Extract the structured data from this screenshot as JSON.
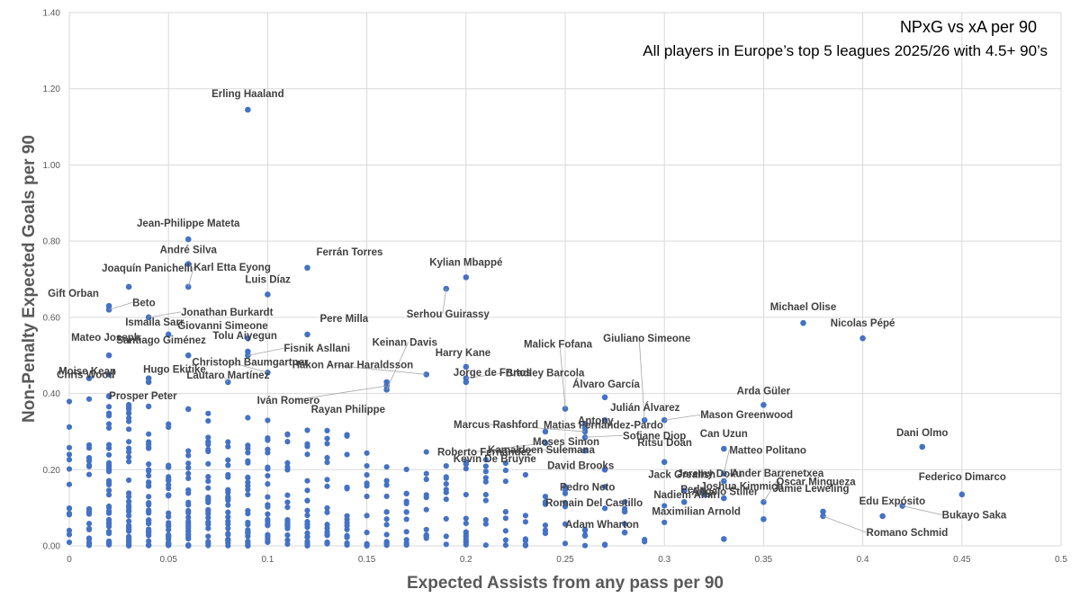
{
  "chart_data": {
    "type": "scatter",
    "title": "NPxG vs xA per 90",
    "subtitle": "All players in Europe’s top 5 leagues 2025/26 with 4.5+ 90’s",
    "xlabel": "Expected Assists from any pass per 90",
    "ylabel": "Non-Penalty Expected Goals per 90",
    "xlim": [
      0,
      0.5
    ],
    "ylim": [
      0,
      1.4
    ],
    "x_ticks": [
      "0",
      "0.05",
      "0.1",
      "0.15",
      "0.2",
      "0.25",
      "0.3",
      "0.35",
      "0.4",
      "0.45",
      "0.5"
    ],
    "y_ticks": [
      "0.00",
      "0.20",
      "0.40",
      "0.60",
      "0.80",
      "1.00",
      "1.20",
      "1.40"
    ],
    "grid": true,
    "color": "#4472c4",
    "labeled_points": [
      {
        "name": "Erling Haaland",
        "x": 0.09,
        "y": 1.145
      },
      {
        "name": "Jean-Philippe Mateta",
        "x": 0.06,
        "y": 0.805
      },
      {
        "name": "André Silva",
        "x": 0.06,
        "y": 0.74
      },
      {
        "name": "Karl Etta Eyong",
        "x": 0.06,
        "y": 0.68
      },
      {
        "name": "Ferrán Torres",
        "x": 0.12,
        "y": 0.73
      },
      {
        "name": "Joaquín Panichelli",
        "x": 0.03,
        "y": 0.68
      },
      {
        "name": "Gift Orban",
        "x": 0.02,
        "y": 0.63
      },
      {
        "name": "Beto",
        "x": 0.02,
        "y": 0.62
      },
      {
        "name": "Luis Díaz",
        "x": 0.1,
        "y": 0.66
      },
      {
        "name": "Jonathan Burkardt",
        "x": 0.04,
        "y": 0.6
      },
      {
        "name": "Kylian Mbappé",
        "x": 0.2,
        "y": 0.705
      },
      {
        "name": "Serhou Guirassy",
        "x": 0.19,
        "y": 0.675
      },
      {
        "name": "Michael Olise",
        "x": 0.37,
        "y": 0.585
      },
      {
        "name": "Nicolas Pépé",
        "x": 0.4,
        "y": 0.545
      },
      {
        "name": "Ismaila Sarr",
        "x": 0.05,
        "y": 0.555
      },
      {
        "name": "Giovanni Simeone",
        "x": 0.09,
        "y": 0.545
      },
      {
        "name": "Pere Milla",
        "x": 0.12,
        "y": 0.555
      },
      {
        "name": "Mateo Joseph",
        "x": 0.02,
        "y": 0.5
      },
      {
        "name": "Santiago Giménez",
        "x": 0.06,
        "y": 0.5
      },
      {
        "name": "Tolu Aiyegun",
        "x": 0.09,
        "y": 0.51
      },
      {
        "name": "Fisnik Asllani",
        "x": 0.09,
        "y": 0.5
      },
      {
        "name": "Keinan Davis",
        "x": 0.16,
        "y": 0.41
      },
      {
        "name": "Malick Fofana",
        "x": 0.25,
        "y": 0.36
      },
      {
        "name": "Giuliano Simeone",
        "x": 0.29,
        "y": 0.33
      },
      {
        "name": "Harry Kane",
        "x": 0.2,
        "y": 0.47
      },
      {
        "name": "Bradley Barcola",
        "x": 0.2,
        "y": 0.44
      },
      {
        "name": "Christoph Baumgartner",
        "x": 0.1,
        "y": 0.455
      },
      {
        "name": "Moise Kean",
        "x": 0.02,
        "y": 0.45
      },
      {
        "name": "Hugo Ekitike",
        "x": 0.04,
        "y": 0.44
      },
      {
        "name": "Lautaro Martínez",
        "x": 0.08,
        "y": 0.43
      },
      {
        "name": "Hákon Arnar Haraldsson",
        "x": 0.18,
        "y": 0.45
      },
      {
        "name": "Jorge de Frutos",
        "x": 0.2,
        "y": 0.43
      },
      {
        "name": "Chris Wood",
        "x": 0.01,
        "y": 0.44
      },
      {
        "name": "Prosper Peter",
        "x": 0.04,
        "y": 0.43
      },
      {
        "name": "Iván Romero",
        "x": 0.16,
        "y": 0.42
      },
      {
        "name": "Álvaro García",
        "x": 0.27,
        "y": 0.39
      },
      {
        "name": "Arda Güler",
        "x": 0.35,
        "y": 0.37
      },
      {
        "name": "Matias Fernandez-Pardo",
        "x": 0.26,
        "y": 0.32
      },
      {
        "name": "Rayan Philippe",
        "x": 0.16,
        "y": 0.43
      },
      {
        "name": "Julián Álvarez",
        "x": 0.27,
        "y": 0.33
      },
      {
        "name": "Antony",
        "x": 0.26,
        "y": 0.31
      },
      {
        "name": "Marcus Rashford",
        "x": 0.26,
        "y": 0.3
      },
      {
        "name": "Mason Greenwood",
        "x": 0.3,
        "y": 0.33
      },
      {
        "name": "Sofiane Diop",
        "x": 0.26,
        "y": 0.285
      },
      {
        "name": "Moses Simon",
        "x": 0.24,
        "y": 0.3
      },
      {
        "name": "Roberto Fernández",
        "x": 0.24,
        "y": 0.27
      },
      {
        "name": "Can Uzun",
        "x": 0.33,
        "y": 0.255
      },
      {
        "name": "Dani Olmo",
        "x": 0.43,
        "y": 0.26
      },
      {
        "name": "Ritsu Doan",
        "x": 0.3,
        "y": 0.22
      },
      {
        "name": "Kamaldeen Sulemana",
        "x": 0.26,
        "y": 0.25
      },
      {
        "name": "Matteo Politano",
        "x": 0.33,
        "y": 0.19
      },
      {
        "name": "Ander Barrenetxea",
        "x": 0.33,
        "y": 0.17
      },
      {
        "name": "Kevin De Bruyne",
        "x": 0.2,
        "y": 0.215
      },
      {
        "name": "David Brooks",
        "x": 0.27,
        "y": 0.2
      },
      {
        "name": "Óscar Mingueza",
        "x": 0.35,
        "y": 0.115
      },
      {
        "name": "Jack Grealish",
        "x": 0.31,
        "y": 0.145
      },
      {
        "name": "Federico Dimarco",
        "x": 0.45,
        "y": 0.135
      },
      {
        "name": "Pedro Neto",
        "x": 0.25,
        "y": 0.155
      },
      {
        "name": "Angelo Stiller",
        "x": 0.31,
        "y": 0.115
      },
      {
        "name": "Pedri",
        "x": 0.32,
        "y": 0.135
      },
      {
        "name": "Jeremy Doku",
        "x": 0.32,
        "y": 0.14
      },
      {
        "name": "Jamie Leweling",
        "x": 0.38,
        "y": 0.09
      },
      {
        "name": "Nadiem Amiri",
        "x": 0.33,
        "y": 0.125
      },
      {
        "name": "Joshua Kimmich",
        "x": 0.35,
        "y": 0.07
      },
      {
        "name": "Edu Expósito",
        "x": 0.41,
        "y": 0.078
      },
      {
        "name": "Romain Del Castillo",
        "x": 0.28,
        "y": 0.09
      },
      {
        "name": "Bukayo Saka",
        "x": 0.42,
        "y": 0.105
      },
      {
        "name": "Adam Wharton",
        "x": 0.28,
        "y": 0.035
      },
      {
        "name": "Maximilian Arnold",
        "x": 0.33,
        "y": 0.018
      },
      {
        "name": "Romano Schmid",
        "x": 0.38,
        "y": 0.078
      }
    ]
  }
}
